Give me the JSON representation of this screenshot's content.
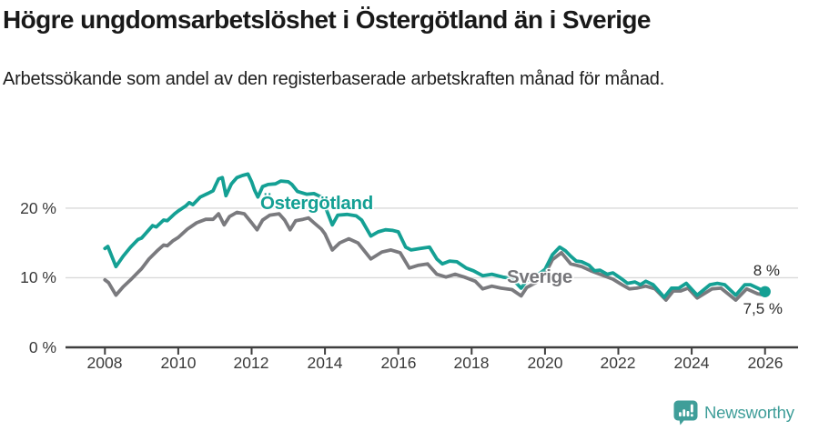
{
  "header": {
    "title": "Högre ungdomsarbetslöshet i Östergötland än i Sverige",
    "subtitle": "Arbetssökande som andel av den registerbaserade arbetskraften månad för månad."
  },
  "chart_data": {
    "type": "line",
    "title": "Högre ungdomsarbetslöshet i Östergötland än i Sverige",
    "subtitle": "Arbetssökande som andel av den registerbaserade arbetskraften månad för månad.",
    "grid": "horizontal gridlines at 10% and 20%, baseline axis at 0%",
    "legend": "inline labels on lines",
    "x_axis": {
      "ticks": [
        2008,
        2010,
        2012,
        2014,
        2016,
        2018,
        2020,
        2022,
        2024,
        2026
      ],
      "tick_labels": [
        "2008",
        "2010",
        "2012",
        "2014",
        "2016",
        "2018",
        "2020",
        "2022",
        "2024",
        "2026"
      ],
      "range": [
        2007.9,
        2026.9
      ]
    },
    "y_axis": {
      "unit": "%",
      "ticks": [
        0,
        10,
        20
      ],
      "tick_labels": [
        "0 %",
        "10 %",
        "20 %"
      ],
      "range": [
        0,
        26.5
      ]
    },
    "colors": {
      "grid": "#d9d9d9",
      "axis": "#3e3e3e",
      "ostergotland": "#14a094",
      "sverige": "#7a7a7e"
    },
    "series": [
      {
        "name": "Sverige",
        "color": "#7a7a7e",
        "end_dot": false,
        "points": [
          [
            2008.0,
            9.7
          ],
          [
            2008.1,
            9.3
          ],
          [
            2008.3,
            7.5
          ],
          [
            2008.5,
            8.7
          ],
          [
            2008.7,
            9.7
          ],
          [
            2008.85,
            10.5
          ],
          [
            2009.0,
            11.3
          ],
          [
            2009.2,
            12.7
          ],
          [
            2009.45,
            14.0
          ],
          [
            2009.6,
            14.7
          ],
          [
            2009.7,
            14.6
          ],
          [
            2009.85,
            15.3
          ],
          [
            2010.0,
            15.8
          ],
          [
            2010.25,
            17.0
          ],
          [
            2010.5,
            17.9
          ],
          [
            2010.75,
            18.4
          ],
          [
            2010.95,
            18.4
          ],
          [
            2011.1,
            19.2
          ],
          [
            2011.25,
            17.6
          ],
          [
            2011.4,
            18.8
          ],
          [
            2011.6,
            19.4
          ],
          [
            2011.8,
            19.2
          ],
          [
            2012.0,
            17.9
          ],
          [
            2012.15,
            16.9
          ],
          [
            2012.3,
            18.3
          ],
          [
            2012.5,
            19.0
          ],
          [
            2012.75,
            19.2
          ],
          [
            2012.9,
            18.3
          ],
          [
            2013.05,
            16.9
          ],
          [
            2013.2,
            18.2
          ],
          [
            2013.4,
            18.4
          ],
          [
            2013.55,
            18.6
          ],
          [
            2013.7,
            17.9
          ],
          [
            2013.9,
            17.0
          ],
          [
            2014.0,
            16.3
          ],
          [
            2014.2,
            14.0
          ],
          [
            2014.4,
            15.0
          ],
          [
            2014.65,
            15.6
          ],
          [
            2014.9,
            15.0
          ],
          [
            2015.25,
            12.7
          ],
          [
            2015.55,
            13.7
          ],
          [
            2015.8,
            14.0
          ],
          [
            2016.05,
            13.6
          ],
          [
            2016.3,
            11.4
          ],
          [
            2016.55,
            11.8
          ],
          [
            2016.8,
            12.0
          ],
          [
            2017.05,
            10.5
          ],
          [
            2017.3,
            10.1
          ],
          [
            2017.55,
            10.5
          ],
          [
            2017.8,
            10.1
          ],
          [
            2018.1,
            9.5
          ],
          [
            2018.3,
            8.4
          ],
          [
            2018.55,
            8.8
          ],
          [
            2018.8,
            8.5
          ],
          [
            2019.1,
            8.3
          ],
          [
            2019.35,
            7.4
          ],
          [
            2019.5,
            8.6
          ],
          [
            2019.75,
            9.3
          ],
          [
            2020.0,
            10.5
          ],
          [
            2020.2,
            12.6
          ],
          [
            2020.45,
            13.6
          ],
          [
            2020.7,
            12.0
          ],
          [
            2020.85,
            11.8
          ],
          [
            2021.0,
            11.6
          ],
          [
            2021.25,
            11.0
          ],
          [
            2021.5,
            10.5
          ],
          [
            2021.85,
            9.8
          ],
          [
            2022.1,
            9.0
          ],
          [
            2022.3,
            8.4
          ],
          [
            2022.5,
            8.5
          ],
          [
            2022.75,
            8.8
          ],
          [
            2023.0,
            8.4
          ],
          [
            2023.3,
            6.8
          ],
          [
            2023.5,
            8.1
          ],
          [
            2023.7,
            8.1
          ],
          [
            2023.9,
            8.5
          ],
          [
            2024.15,
            7.1
          ],
          [
            2024.55,
            8.4
          ],
          [
            2024.8,
            8.5
          ],
          [
            2025.2,
            6.8
          ],
          [
            2025.5,
            8.4
          ],
          [
            2025.8,
            7.7
          ],
          [
            2026.0,
            7.5
          ]
        ]
      },
      {
        "name": "Östergötland",
        "color": "#14a094",
        "end_dot": true,
        "points": [
          [
            2008.0,
            14.2
          ],
          [
            2008.08,
            14.5
          ],
          [
            2008.3,
            11.6
          ],
          [
            2008.5,
            13.1
          ],
          [
            2008.7,
            14.4
          ],
          [
            2008.9,
            15.5
          ],
          [
            2009.0,
            15.7
          ],
          [
            2009.2,
            16.9
          ],
          [
            2009.3,
            17.5
          ],
          [
            2009.4,
            17.3
          ],
          [
            2009.6,
            18.3
          ],
          [
            2009.7,
            18.2
          ],
          [
            2009.9,
            19.2
          ],
          [
            2010.0,
            19.6
          ],
          [
            2010.2,
            20.3
          ],
          [
            2010.3,
            20.8
          ],
          [
            2010.4,
            20.5
          ],
          [
            2010.6,
            21.6
          ],
          [
            2010.8,
            22.1
          ],
          [
            2010.95,
            22.5
          ],
          [
            2011.0,
            23.1
          ],
          [
            2011.1,
            24.2
          ],
          [
            2011.2,
            24.4
          ],
          [
            2011.3,
            21.8
          ],
          [
            2011.45,
            23.5
          ],
          [
            2011.6,
            24.4
          ],
          [
            2011.75,
            24.7
          ],
          [
            2011.9,
            24.9
          ],
          [
            2012.0,
            23.8
          ],
          [
            2012.08,
            22.6
          ],
          [
            2012.17,
            21.6
          ],
          [
            2012.3,
            23.1
          ],
          [
            2012.45,
            23.4
          ],
          [
            2012.65,
            23.5
          ],
          [
            2012.8,
            23.9
          ],
          [
            2013.0,
            23.8
          ],
          [
            2013.1,
            23.4
          ],
          [
            2013.25,
            22.4
          ],
          [
            2013.5,
            22.0
          ],
          [
            2013.7,
            22.1
          ],
          [
            2013.9,
            21.6
          ],
          [
            2014.0,
            20.3
          ],
          [
            2014.2,
            17.6
          ],
          [
            2014.35,
            19.0
          ],
          [
            2014.6,
            19.1
          ],
          [
            2014.85,
            18.9
          ],
          [
            2015.0,
            18.3
          ],
          [
            2015.25,
            16.0
          ],
          [
            2015.45,
            16.6
          ],
          [
            2015.65,
            16.9
          ],
          [
            2015.85,
            16.8
          ],
          [
            2016.0,
            16.6
          ],
          [
            2016.2,
            14.4
          ],
          [
            2016.35,
            14.0
          ],
          [
            2016.6,
            14.2
          ],
          [
            2016.85,
            14.4
          ],
          [
            2017.05,
            12.7
          ],
          [
            2017.2,
            12.0
          ],
          [
            2017.4,
            12.4
          ],
          [
            2017.6,
            12.3
          ],
          [
            2017.85,
            11.4
          ],
          [
            2018.05,
            11.0
          ],
          [
            2018.3,
            10.3
          ],
          [
            2018.55,
            10.5
          ],
          [
            2018.85,
            10.1
          ],
          [
            2019.1,
            9.9
          ],
          [
            2019.35,
            8.5
          ],
          [
            2019.5,
            9.6
          ],
          [
            2019.75,
            10.2
          ],
          [
            2020.0,
            11.2
          ],
          [
            2020.2,
            13.3
          ],
          [
            2020.4,
            14.4
          ],
          [
            2020.55,
            13.9
          ],
          [
            2020.7,
            13.1
          ],
          [
            2020.85,
            12.4
          ],
          [
            2021.0,
            12.3
          ],
          [
            2021.2,
            11.8
          ],
          [
            2021.35,
            11.0
          ],
          [
            2021.5,
            11.1
          ],
          [
            2021.7,
            10.5
          ],
          [
            2021.85,
            10.7
          ],
          [
            2022.1,
            9.8
          ],
          [
            2022.25,
            9.2
          ],
          [
            2022.45,
            9.4
          ],
          [
            2022.6,
            9.0
          ],
          [
            2022.75,
            9.5
          ],
          [
            2022.95,
            9.0
          ],
          [
            2023.25,
            7.2
          ],
          [
            2023.45,
            8.5
          ],
          [
            2023.65,
            8.5
          ],
          [
            2023.85,
            9.2
          ],
          [
            2024.15,
            7.5
          ],
          [
            2024.5,
            9.0
          ],
          [
            2024.7,
            9.2
          ],
          [
            2024.9,
            9.0
          ],
          [
            2025.2,
            7.5
          ],
          [
            2025.45,
            9.0
          ],
          [
            2025.6,
            9.0
          ],
          [
            2025.8,
            8.5
          ],
          [
            2026.0,
            8.0
          ]
        ]
      }
    ],
    "annotations": {
      "series_label_ostergotland": "Östergötland",
      "series_label_sverige": "Sverige",
      "end_value_ostergotland": "8 %",
      "end_value_sverige": "7,5 %"
    }
  },
  "footer": {
    "brand_name": "Newsworthy",
    "brand_color": "#3f9e99",
    "logo_icon": "bar-chart-speech-bubble"
  }
}
